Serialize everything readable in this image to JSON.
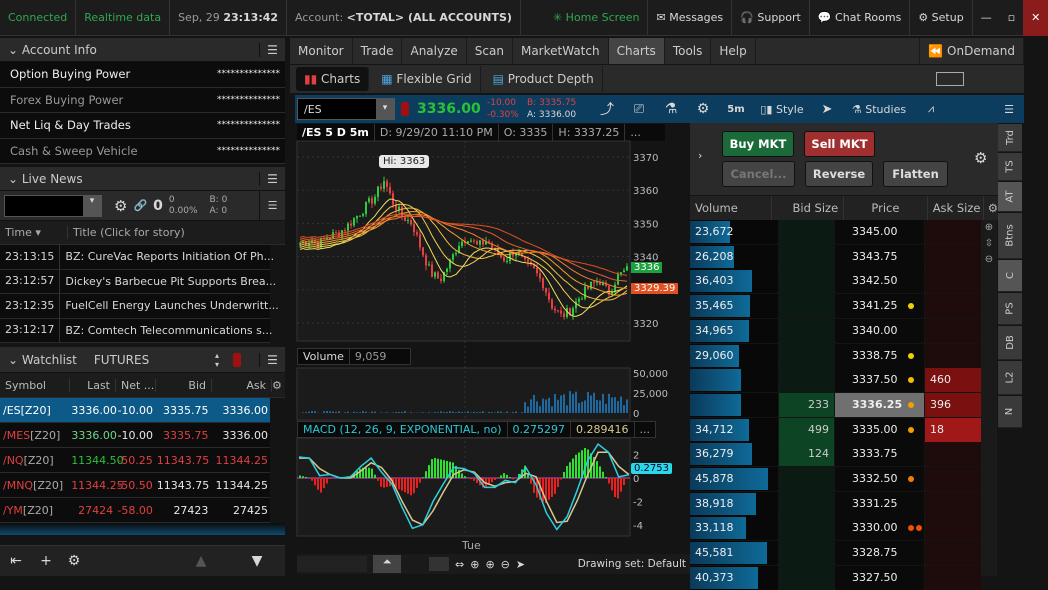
{
  "topbar": {
    "connected": "Connected",
    "realtime": "Realtime data",
    "date": "Sep, 29",
    "time": "23:13:42",
    "account_label": "Account:",
    "account_value": "<TOTAL> (ALL ACCOUNTS)",
    "home": "Home Screen",
    "messages": "Messages",
    "support": "Support",
    "chat": "Chat Rooms",
    "setup": "Setup"
  },
  "account_info": {
    "title": "Account Info",
    "rows": [
      {
        "label": "Option Buying Power",
        "value": "**************"
      },
      {
        "label": "Forex Buying Power",
        "value": "**************"
      },
      {
        "label": "Net Liq & Day Trades",
        "value": "**************"
      },
      {
        "label": "Cash & Sweep Vehicle",
        "value": "**************"
      }
    ]
  },
  "live_news": {
    "title": "Live News",
    "count": "0",
    "change": "0",
    "pct": "0.00%",
    "bid": "B: 0",
    "ask": "A: 0",
    "col_time": "Time",
    "col_title": "Title (Click for story)",
    "items": [
      {
        "time": "23:13:15",
        "title": "BZ: CureVac Reports Initiation Of Ph..."
      },
      {
        "time": "23:12:57",
        "title": "Dickey's Barbecue Pit Supports Brea..."
      },
      {
        "time": "23:12:35",
        "title": "FuelCell Energy Launches Underwritt..."
      },
      {
        "time": "23:12:17",
        "title": "BZ: Comtech Telecommunications s..."
      }
    ]
  },
  "watchlist": {
    "title": "Watchlist",
    "list": "FUTURES",
    "cols": [
      "Symbol",
      "Last",
      "Net ...",
      "Bid",
      "Ask"
    ],
    "rows": [
      {
        "sym": "/ES",
        "exp": "[Z20]",
        "last": "3336.00",
        "net": "-10.00",
        "bid": "3335.75",
        "ask": "3336.00"
      },
      {
        "sym": "/MES",
        "exp": "[Z20]",
        "last": "3336.00",
        "net": "-10.00",
        "bid": "3335.75",
        "ask": "3336.00"
      },
      {
        "sym": "/NQ",
        "exp": "[Z20]",
        "last": "11344.50",
        "net": "-50.25",
        "bid": "11343.75",
        "ask": "11344.25"
      },
      {
        "sym": "/MNQ",
        "exp": "[Z20]",
        "last": "11344.25",
        "net": "-50.50",
        "bid": "11343.75",
        "ask": "11344.25"
      },
      {
        "sym": "/YM",
        "exp": "[Z20]",
        "last": "27424",
        "net": "-58.00",
        "bid": "27423",
        "ask": "27425"
      }
    ]
  },
  "nav": {
    "tabs": [
      "Monitor",
      "Trade",
      "Analyze",
      "Scan",
      "MarketWatch",
      "Charts",
      "Tools",
      "Help"
    ],
    "active": "Charts",
    "ondemand": "OnDemand",
    "subtabs": [
      "Charts",
      "Flexible Grid",
      "Product Depth"
    ]
  },
  "quote": {
    "symbol": "/ES",
    "last": "3336.00",
    "net": "-10.00",
    "pct": "-0.30%",
    "bid": "B: 3335.75",
    "ask": "A: 3336.00",
    "timeframe": "5m",
    "style": "Style",
    "studies": "Studies"
  },
  "chart": {
    "title": "/ES 5 D 5m",
    "date": "D: 9/29/20 11:10 PM",
    "open": "O: 3335",
    "high": "H: 3337.25",
    "more": "...",
    "hi_label": "Hi: 3363",
    "last_tag": "3336",
    "ma_tag": "3329.39",
    "volume_label": "Volume",
    "volume_value": "9,059",
    "macd_label": "MACD (12, 26, 9, EXPONENTIAL, no)",
    "macd_value": "0.275297",
    "macd_avg": "0.289416",
    "macd_tag": "0.2753",
    "x_label": "Tue",
    "drawing_set": "Drawing set: Default"
  },
  "chart_data": {
    "type": "candlestick",
    "price_ticks": [
      3370,
      3360,
      3350,
      3340,
      3330,
      3320
    ],
    "ylim": [
      3316,
      3374
    ],
    "close": [
      3344,
      3345,
      3344,
      3346,
      3347,
      3349,
      3352,
      3355,
      3358,
      3363,
      3356,
      3352,
      3350,
      3342,
      3335,
      3333,
      3338,
      3344,
      3346,
      3343,
      3345,
      3341,
      3339,
      3342,
      3338,
      3336,
      3332,
      3325,
      3322,
      3324,
      3328,
      3331,
      3333,
      3329,
      3334,
      3336
    ],
    "volume_ticks": [
      50000,
      25000,
      0
    ],
    "macd_ticks": [
      2,
      0,
      -2,
      -4
    ],
    "macd": [
      1.8,
      1.7,
      0.2,
      0.3,
      0,
      0.1,
      1,
      1.7,
      0.5,
      -0.5,
      -2.5,
      -4.3,
      -4,
      -2,
      -0.5,
      0.9,
      0.8,
      0.4,
      -0.8,
      -0.8,
      -0.2,
      -0.4,
      0.9,
      -0.6,
      -3,
      -4.4,
      -3.3,
      -1,
      1.5,
      2.9,
      2.2,
      0.1,
      0.28
    ],
    "signal": [
      1.7,
      1.7,
      0.8,
      0.3,
      0,
      0,
      0.6,
      1.3,
      0.9,
      -0.2,
      -2,
      -3.6,
      -4,
      -2.8,
      -1.2,
      0.3,
      0.7,
      0.5,
      -0.4,
      -0.7,
      -0.4,
      -0.3,
      0.4,
      0.1,
      -2,
      -3.8,
      -3.7,
      -1.9,
      0.3,
      2.2,
      2.2,
      1,
      0.29
    ]
  },
  "order": {
    "buy": "Buy MKT",
    "sell": "Sell MKT",
    "cancel": "Cancel...",
    "reverse": "Reverse",
    "flatten": "Flatten"
  },
  "ladder": {
    "cols": [
      "Volume",
      "Bid Size",
      "Price",
      "Ask Size"
    ],
    "rows": [
      {
        "vol": "23,672",
        "v": 23672,
        "price": "3345.00"
      },
      {
        "vol": "26,208",
        "v": 26208,
        "price": "3343.75"
      },
      {
        "vol": "36,403",
        "v": 36403,
        "price": "3342.50"
      },
      {
        "vol": "35,465",
        "v": 35465,
        "price": "3341.25",
        "dot": "#f0d000"
      },
      {
        "vol": "34,965",
        "v": 34965,
        "price": "3340.00"
      },
      {
        "vol": "29,060",
        "v": 29060,
        "price": "3338.75",
        "dot": "#f0d000"
      },
      {
        "vol": "",
        "v": 30000,
        "price": "3337.50",
        "ask": "460",
        "dot": "#f0c000"
      },
      {
        "vol": "",
        "v": 30000,
        "price": "3336.25",
        "bid": "233",
        "ask": "396",
        "dot": "#f0a000",
        "current": true
      },
      {
        "vol": "34,712",
        "v": 34712,
        "price": "3335.00",
        "bid": "499",
        "ask": "18",
        "dot": "#f0a000"
      },
      {
        "vol": "36,279",
        "v": 36279,
        "price": "3333.75",
        "bid": "124"
      },
      {
        "vol": "45,878",
        "v": 45878,
        "price": "3332.50",
        "dot": "#f08000"
      },
      {
        "vol": "38,918",
        "v": 38918,
        "price": "3331.25"
      },
      {
        "vol": "33,118",
        "v": 33118,
        "price": "3330.00",
        "dot": "#f05000",
        "dot2": true
      },
      {
        "vol": "45,581",
        "v": 45581,
        "price": "3328.75"
      },
      {
        "vol": "40,373",
        "v": 40373,
        "price": "3327.50"
      }
    ]
  },
  "side_tabs": [
    "Trd",
    "TS",
    "AT",
    "Btns",
    "C",
    "PS",
    "DB",
    "L2",
    "N"
  ]
}
